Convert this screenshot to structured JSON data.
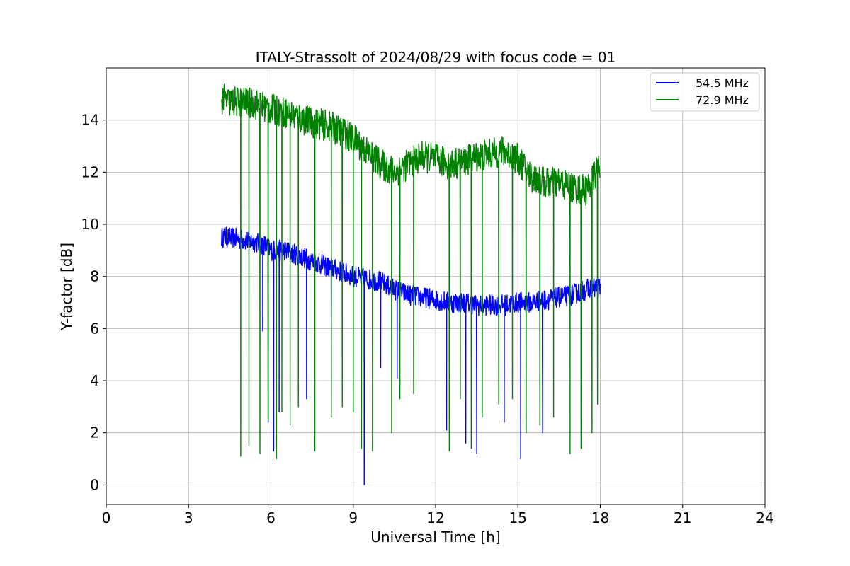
{
  "chart_data": {
    "type": "line",
    "title": "ITALY-Strassolt of 2024/08/29 with focus code = 01",
    "xlabel": "Universal Time [h]",
    "ylabel": "Y-factor [dB]",
    "xlim": [
      0,
      24
    ],
    "ylim": [
      -0.75,
      16
    ],
    "xticks": [
      0,
      3,
      6,
      9,
      12,
      15,
      18,
      21,
      24
    ],
    "yticks": [
      0,
      2,
      4,
      6,
      8,
      10,
      12,
      14
    ],
    "grid": true,
    "legend_position": "top-right",
    "series": [
      {
        "name": "54.5 MHz",
        "color": "#0000ff",
        "x": [
          4.2,
          4.5,
          5.0,
          5.5,
          5.8,
          6.0,
          6.5,
          7.0,
          7.5,
          8.0,
          8.5,
          9.0,
          9.5,
          10.0,
          10.5,
          11.0,
          11.5,
          12.0,
          12.5,
          13.0,
          13.5,
          14.0,
          14.5,
          15.0,
          15.5,
          16.0,
          16.5,
          17.0,
          17.5,
          18.0
        ],
        "values": [
          9.5,
          9.5,
          9.4,
          9.3,
          9.2,
          9.0,
          9.0,
          8.8,
          8.6,
          8.4,
          8.2,
          8.0,
          7.9,
          7.8,
          7.5,
          7.3,
          7.2,
          7.1,
          7.0,
          7.0,
          6.9,
          6.9,
          6.9,
          7.0,
          7.0,
          7.1,
          7.2,
          7.3,
          7.5,
          7.6
        ],
        "band": 0.4,
        "dips": [
          [
            5.7,
            5.9
          ],
          [
            5.9,
            2.4
          ],
          [
            6.1,
            1.3
          ],
          [
            6.3,
            2.8
          ],
          [
            7.3,
            3.3
          ],
          [
            8.2,
            3.9
          ],
          [
            9.4,
            0.0
          ],
          [
            10.0,
            4.5
          ],
          [
            10.6,
            4.1
          ],
          [
            12.4,
            2.1
          ],
          [
            13.1,
            1.6
          ],
          [
            13.5,
            1.2
          ],
          [
            14.5,
            2.4
          ],
          [
            15.1,
            1.0
          ],
          [
            15.9,
            2.0
          ]
        ]
      },
      {
        "name": "72.9 MHz",
        "color": "#008000",
        "x": [
          4.2,
          4.5,
          5.0,
          5.5,
          6.0,
          6.5,
          7.0,
          7.5,
          8.0,
          8.5,
          9.0,
          9.5,
          10.0,
          10.5,
          11.0,
          11.5,
          12.0,
          12.5,
          13.0,
          13.5,
          14.0,
          14.5,
          15.0,
          15.5,
          16.0,
          16.5,
          17.0,
          17.5,
          18.0
        ],
        "values": [
          14.8,
          14.7,
          14.7,
          14.6,
          14.4,
          14.3,
          14.1,
          13.9,
          13.8,
          13.6,
          13.3,
          12.8,
          12.3,
          12.0,
          12.3,
          12.6,
          12.5,
          12.3,
          12.4,
          12.6,
          12.7,
          12.8,
          12.5,
          11.8,
          11.6,
          11.6,
          11.4,
          11.3,
          12.3
        ],
        "band": 0.6,
        "dips": [
          [
            4.9,
            1.1
          ],
          [
            5.2,
            1.5
          ],
          [
            5.6,
            1.2
          ],
          [
            5.9,
            2.5
          ],
          [
            6.2,
            1.0
          ],
          [
            6.4,
            2.8
          ],
          [
            6.7,
            2.3
          ],
          [
            7.0,
            3.0
          ],
          [
            7.6,
            1.3
          ],
          [
            8.2,
            2.6
          ],
          [
            8.6,
            3.0
          ],
          [
            9.0,
            2.8
          ],
          [
            9.3,
            1.4
          ],
          [
            9.7,
            1.3
          ],
          [
            10.4,
            2.0
          ],
          [
            10.7,
            3.3
          ],
          [
            11.2,
            3.5
          ],
          [
            12.5,
            1.3
          ],
          [
            12.9,
            3.3
          ],
          [
            13.3,
            1.4
          ],
          [
            13.7,
            2.6
          ],
          [
            14.3,
            3.1
          ],
          [
            14.8,
            3.3
          ],
          [
            15.3,
            2.0
          ],
          [
            15.8,
            2.3
          ],
          [
            16.3,
            2.6
          ],
          [
            16.9,
            1.2
          ],
          [
            17.3,
            1.4
          ],
          [
            17.7,
            2.0
          ],
          [
            17.9,
            3.1
          ]
        ]
      }
    ]
  }
}
